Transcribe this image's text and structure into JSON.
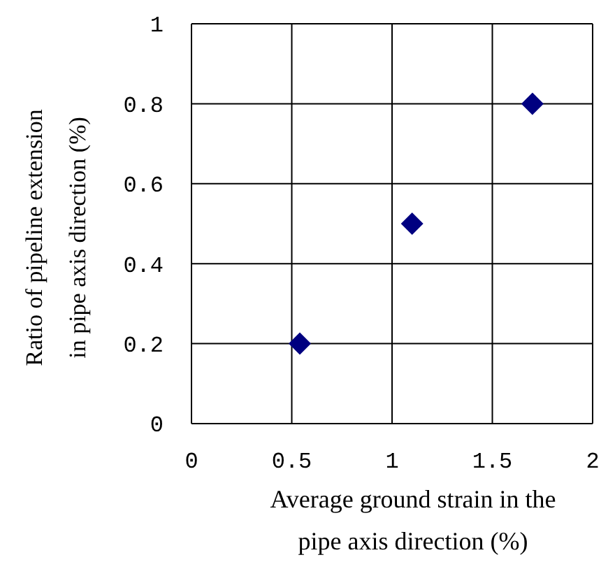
{
  "chart_data": {
    "type": "scatter",
    "xlabel": "Average ground strain in the pipe axis direction (%)",
    "ylabel": "Ratio of pipeline extension in pipe axis direction (%)",
    "x": [
      0.54,
      1.1,
      1.7
    ],
    "series": [
      {
        "color": "#000080",
        "values": [
          0.2,
          0.5,
          0.8
        ]
      }
    ],
    "xlim": [
      0,
      2
    ],
    "xticks": [
      0,
      0.5,
      1,
      1.5,
      2
    ],
    "ylim": [
      0,
      1
    ],
    "yticks": [
      0,
      0.2,
      0.4,
      0.6,
      0.8,
      1
    ],
    "grid": true,
    "marker": "diamond",
    "legend": false
  }
}
